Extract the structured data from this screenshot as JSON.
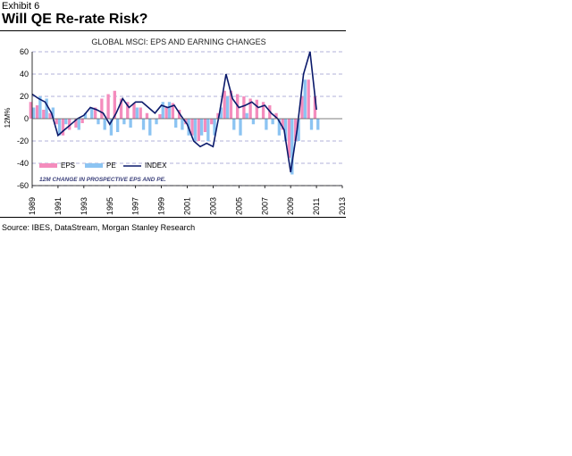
{
  "header": {
    "exhibit": "Exhibit 6",
    "title": "Will QE Re-rate Risk?"
  },
  "footer": {
    "source": "Source: IBES, DataStream, Morgan Stanley Research"
  },
  "chart_data": {
    "type": "area",
    "title": "GLOBAL MSCI: EPS AND EARNING CHANGES",
    "ylabel": "12M%",
    "xlabel": "",
    "ylim": [
      -60,
      60
    ],
    "yticks": [
      60,
      40,
      20,
      0,
      -20,
      -40,
      -60
    ],
    "xlim": [
      1989,
      2013
    ],
    "xticks": [
      "1989",
      "1991",
      "1993",
      "1995",
      "1997",
      "1999",
      "2001",
      "2003",
      "2005",
      "2007",
      "2009",
      "2011",
      "2013"
    ],
    "grid": true,
    "legend_position": "bottom-left",
    "note": "12M CHANGE IN PROSPECTIVE EPS AND PE.",
    "colors": {
      "EPS": "#f48cbd",
      "PE": "#8cc4f2",
      "INDEX": "#0b1a6b",
      "grid": "#9999cc"
    },
    "x": [
      1989.0,
      1989.5,
      1990.0,
      1990.5,
      1991.0,
      1991.5,
      1992.0,
      1992.5,
      1993.0,
      1993.5,
      1994.0,
      1994.5,
      1995.0,
      1995.5,
      1996.0,
      1996.5,
      1997.0,
      1997.5,
      1998.0,
      1998.5,
      1999.0,
      1999.5,
      2000.0,
      2000.5,
      2001.0,
      2001.5,
      2002.0,
      2002.5,
      2003.0,
      2003.5,
      2004.0,
      2004.5,
      2005.0,
      2005.5,
      2006.0,
      2006.5,
      2007.0,
      2007.5,
      2008.0,
      2008.5,
      2009.0,
      2009.5,
      2010.0,
      2010.5,
      2011.0
    ],
    "series": [
      {
        "name": "EPS",
        "values": [
          15,
          12,
          8,
          5,
          -5,
          -15,
          -10,
          -8,
          -4,
          0,
          10,
          18,
          22,
          25,
          18,
          15,
          14,
          10,
          5,
          0,
          4,
          10,
          14,
          8,
          -5,
          -15,
          -20,
          -12,
          -5,
          5,
          25,
          25,
          22,
          20,
          18,
          17,
          15,
          12,
          5,
          -10,
          -35,
          -20,
          20,
          35,
          20
        ]
      },
      {
        "name": "PE",
        "values": [
          10,
          20,
          18,
          10,
          -15,
          -5,
          0,
          -10,
          5,
          10,
          -5,
          -10,
          -15,
          -12,
          -5,
          -8,
          10,
          -10,
          -15,
          -5,
          15,
          15,
          -8,
          -10,
          -15,
          -20,
          -15,
          -20,
          -15,
          10,
          20,
          -10,
          -15,
          5,
          -5,
          0,
          -10,
          -5,
          -15,
          -20,
          -50,
          -20,
          35,
          -10,
          -10
        ]
      },
      {
        "name": "INDEX",
        "values": [
          22,
          18,
          15,
          5,
          -15,
          -10,
          -5,
          0,
          3,
          10,
          8,
          5,
          -5,
          5,
          18,
          10,
          15,
          15,
          10,
          5,
          12,
          10,
          12,
          3,
          -5,
          -20,
          -25,
          -22,
          -25,
          5,
          40,
          18,
          10,
          12,
          15,
          10,
          12,
          5,
          0,
          -10,
          -48,
          -10,
          40,
          60,
          8
        ]
      }
    ]
  }
}
